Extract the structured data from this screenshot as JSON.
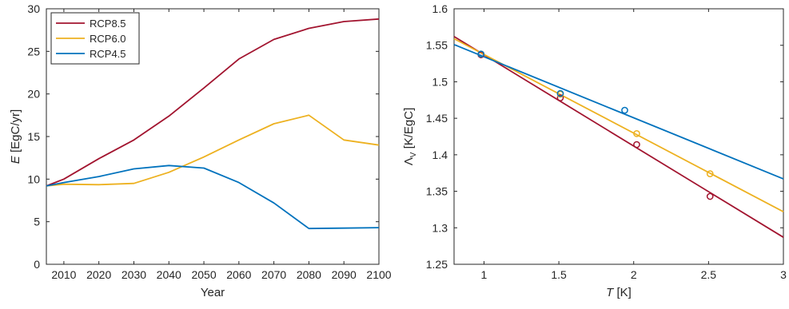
{
  "colors": {
    "rcp85": "#A2142F",
    "rcp60": "#EDB120",
    "rcp45": "#0072BD",
    "axis": "#262626",
    "background": "#ffffff"
  },
  "chart_data": [
    {
      "type": "line",
      "title": "",
      "xlabel": "Year",
      "ylabel": "E [EgC/yr]",
      "ylabel_italic": "E",
      "ylabel_rest": " [EgC/yr]",
      "xlim": [
        2005,
        2100
      ],
      "ylim": [
        0,
        30
      ],
      "xticks": [
        2010,
        2020,
        2030,
        2040,
        2050,
        2060,
        2070,
        2080,
        2090,
        2100
      ],
      "yticks": [
        0,
        5,
        10,
        15,
        20,
        25,
        30
      ],
      "grid": false,
      "legend": "top-left",
      "x": [
        2005,
        2010,
        2020,
        2030,
        2040,
        2050,
        2060,
        2070,
        2080,
        2090,
        2100
      ],
      "series": [
        {
          "name": "RCP8.5",
          "color": "#A2142F",
          "values": [
            9.2,
            10.0,
            12.4,
            14.6,
            17.4,
            20.7,
            24.1,
            26.4,
            27.7,
            28.5,
            28.8
          ]
        },
        {
          "name": "RCP6.0",
          "color": "#EDB120",
          "values": [
            9.2,
            9.4,
            9.35,
            9.5,
            10.8,
            12.6,
            14.6,
            16.5,
            17.5,
            14.6,
            14.0
          ]
        },
        {
          "name": "RCP4.5",
          "color": "#0072BD",
          "values": [
            9.2,
            9.6,
            10.3,
            11.2,
            11.6,
            11.3,
            9.6,
            7.2,
            4.2,
            4.25,
            4.3
          ]
        }
      ]
    },
    {
      "type": "scatter",
      "title": "",
      "xlabel": "T [K]",
      "xlabel_italic": "T",
      "xlabel_rest": " [K]",
      "ylabel": "Λv [K/EgC]",
      "ylabel_symbol": "Λ",
      "ylabel_sub": "V",
      "ylabel_rest": " [K/EgC]",
      "xlim": [
        0.8,
        3
      ],
      "ylim": [
        1.25,
        1.6
      ],
      "xticks": [
        1,
        1.5,
        2,
        2.5,
        3
      ],
      "yticks": [
        1.25,
        1.3,
        1.35,
        1.4,
        1.45,
        1.5,
        1.55,
        1.6
      ],
      "grid": false,
      "series": [
        {
          "name": "RCP8.5",
          "color": "#A2142F",
          "points": [
            [
              0.98,
              1.537
            ],
            [
              1.51,
              1.478
            ],
            [
              2.02,
              1.414
            ],
            [
              2.51,
              1.343
            ]
          ],
          "fit": [
            [
              0.8,
              1.562
            ],
            [
              3.0,
              1.287
            ]
          ]
        },
        {
          "name": "RCP6.0",
          "color": "#EDB120",
          "points": [
            [
              0.98,
              1.538
            ],
            [
              1.51,
              1.483
            ],
            [
              2.02,
              1.429
            ],
            [
              2.51,
              1.374
            ]
          ],
          "fit": [
            [
              0.8,
              1.559
            ],
            [
              3.0,
              1.322
            ]
          ]
        },
        {
          "name": "RCP4.5",
          "color": "#0072BD",
          "points": [
            [
              0.98,
              1.538
            ],
            [
              1.51,
              1.484
            ],
            [
              1.94,
              1.461
            ]
          ],
          "fit": [
            [
              0.8,
              1.551
            ],
            [
              3.0,
              1.367
            ]
          ]
        }
      ]
    }
  ]
}
